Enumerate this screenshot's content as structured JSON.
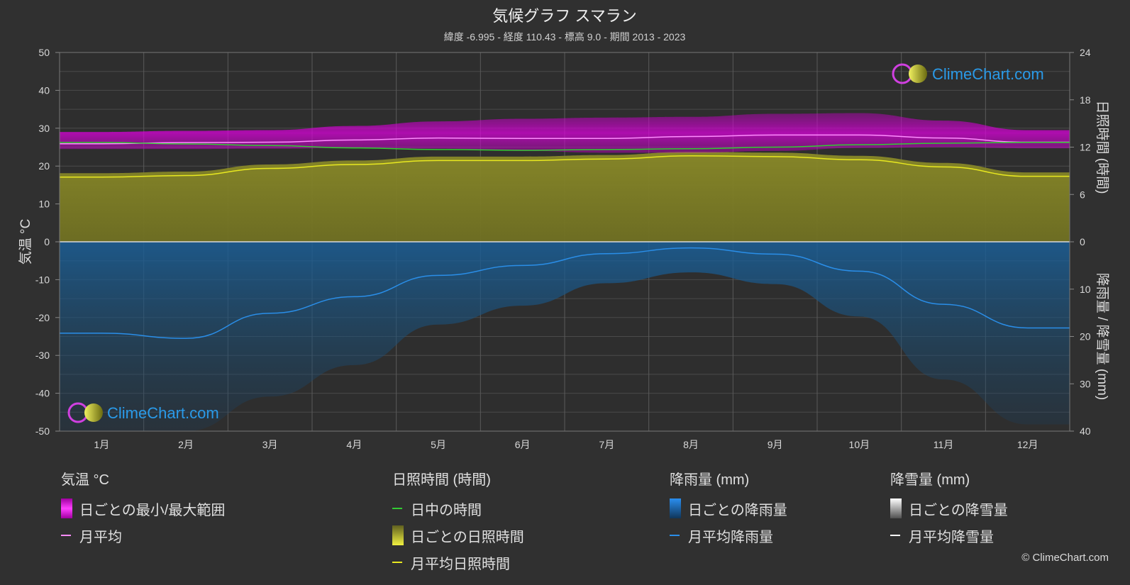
{
  "header": {
    "title": "気候グラフ スマラン",
    "subtitle": "緯度 -6.995 - 経度 110.43 - 標高 9.0 - 期間 2013 - 2023"
  },
  "brand": {
    "logo_text": "ClimeChart.com",
    "copyright": "© ClimeChart.com"
  },
  "colors": {
    "background": "#303030",
    "temp_range": "#e000e0",
    "temp_avg": "#ff8cff",
    "daylight": "#33cc33",
    "sunshine_fill": "#a0a030",
    "sunshine_avg": "#e8e820",
    "rain_fill": "#1a6aa8",
    "rain_avg": "#2a8ee8",
    "snow_avg": "#ffffff"
  },
  "chart_data": {
    "type": "line",
    "x_axis": {
      "categories": [
        "1月",
        "2月",
        "3月",
        "4月",
        "5月",
        "6月",
        "7月",
        "8月",
        "9月",
        "10月",
        "11月",
        "12月"
      ]
    },
    "y_left": {
      "label": "気温 °C",
      "range": [
        -50,
        50
      ],
      "ticks": [
        50,
        40,
        30,
        20,
        10,
        0,
        -10,
        -20,
        -30,
        -40,
        -50
      ]
    },
    "y_right_top": {
      "label": "日照時間 (時間)",
      "range": [
        0,
        24
      ],
      "ticks": [
        24,
        18,
        12,
        6,
        0
      ]
    },
    "y_right_bottom": {
      "label": "降雨量 / 降雪量 (mm)",
      "range": [
        0,
        40
      ],
      "ticks": [
        0,
        10,
        20,
        30,
        40
      ]
    },
    "grid": true,
    "series": [
      {
        "name": "月平均",
        "axis": "temperature_c",
        "values": [
          25.9,
          26.2,
          26.3,
          26.9,
          27.4,
          27.3,
          27.3,
          27.8,
          28.2,
          28.2,
          27.4,
          26.3
        ]
      },
      {
        "name": "日中の時間",
        "axis": "hours",
        "values": [
          12.6,
          12.4,
          12.2,
          11.9,
          11.7,
          11.6,
          11.7,
          11.8,
          12.0,
          12.3,
          12.5,
          12.6
        ]
      },
      {
        "name": "月平均日照時間",
        "axis": "hours",
        "values": [
          8.2,
          8.4,
          9.3,
          9.8,
          10.3,
          10.3,
          10.5,
          10.9,
          10.8,
          10.4,
          9.5,
          8.3
        ]
      },
      {
        "name": "月平均降雨量",
        "axis": "precip_mm",
        "values": [
          19.3,
          20.4,
          15.1,
          11.6,
          7.1,
          5.0,
          2.5,
          1.3,
          2.6,
          6.2,
          13.2,
          18.2
        ]
      },
      {
        "name": "月平均降雪量",
        "axis": "precip_mm",
        "values": [
          0,
          0,
          0,
          0,
          0,
          0,
          0,
          0,
          0,
          0,
          0,
          0
        ]
      }
    ],
    "daily_temp_range": {
      "min": [
        24.5,
        24.5,
        24.6,
        24.8,
        24.6,
        24.0,
        23.5,
        23.5,
        24.0,
        24.8,
        25.0,
        24.7
      ],
      "max": [
        29.0,
        29.3,
        29.5,
        30.6,
        31.8,
        32.5,
        32.8,
        33.0,
        33.8,
        34.0,
        32.0,
        29.5
      ]
    }
  },
  "legend": {
    "groups": [
      {
        "title": "気温 °C",
        "items": [
          {
            "label": "日ごとの最小/最大範囲",
            "kind": "box",
            "color": "#e000e0"
          },
          {
            "label": "月平均",
            "kind": "line",
            "color": "#ff8cff"
          }
        ]
      },
      {
        "title": "日照時間 (時間)",
        "items": [
          {
            "label": "日中の時間",
            "kind": "line",
            "color": "#33cc33"
          },
          {
            "label": "日ごとの日照時間",
            "kind": "box",
            "color": "#c8c830"
          },
          {
            "label": "月平均日照時間",
            "kind": "line",
            "color": "#e8e820"
          }
        ]
      },
      {
        "title": "降雨量 (mm)",
        "items": [
          {
            "label": "日ごとの降雨量",
            "kind": "box",
            "color": "#1e7ad0"
          },
          {
            "label": "月平均降雨量",
            "kind": "line",
            "color": "#2a8ee8"
          }
        ]
      },
      {
        "title": "降雪量 (mm)",
        "items": [
          {
            "label": "日ごとの降雪量",
            "kind": "box",
            "color": "#dcdcdc"
          },
          {
            "label": "月平均降雪量",
            "kind": "line",
            "color": "#ffffff"
          }
        ]
      }
    ]
  }
}
